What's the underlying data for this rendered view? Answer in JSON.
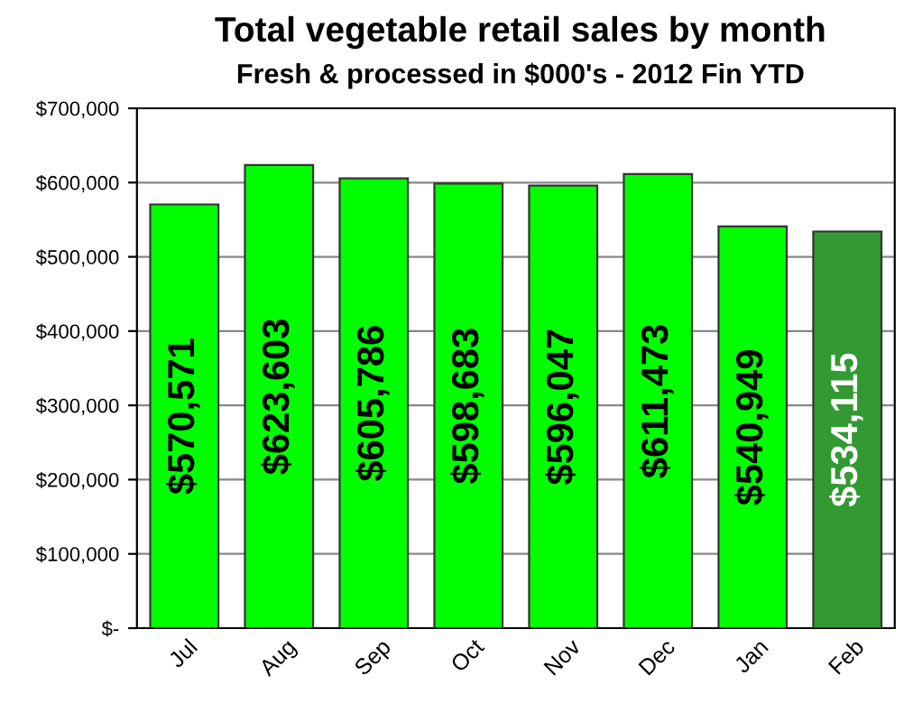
{
  "chart_data": {
    "type": "bar",
    "title": "Total vegetable retail sales by month",
    "subtitle": "Fresh & processed in $000's - 2012 Fin YTD",
    "categories": [
      "Jul",
      "Aug",
      "Sep",
      "Oct",
      "Nov",
      "Dec",
      "Jan",
      "Feb"
    ],
    "values": [
      570571,
      623603,
      605786,
      598683,
      596047,
      611473,
      540949,
      534115
    ],
    "colors": [
      "#00ff00",
      "#00ff00",
      "#00ff00",
      "#00ff00",
      "#00ff00",
      "#00ff00",
      "#00ff00",
      "#339933"
    ],
    "value_labels": [
      "$570,571",
      "$623,603",
      "$605,786",
      "$598,683",
      "$596,047",
      "$611,473",
      "$540,949",
      "$534,115"
    ],
    "ylim": [
      0,
      700000
    ],
    "yticks": [
      {
        "value": 0,
        "label": "$-"
      },
      {
        "value": 100000,
        "label": "$100,000"
      },
      {
        "value": 200000,
        "label": "$200,000"
      },
      {
        "value": 300000,
        "label": "$300,000"
      },
      {
        "value": 400000,
        "label": "$400,000"
      },
      {
        "value": 500000,
        "label": "$500,000"
      },
      {
        "value": 600000,
        "label": "$600,000"
      },
      {
        "value": 700000,
        "label": "$700,000"
      }
    ],
    "grid": "y",
    "legend": false
  }
}
